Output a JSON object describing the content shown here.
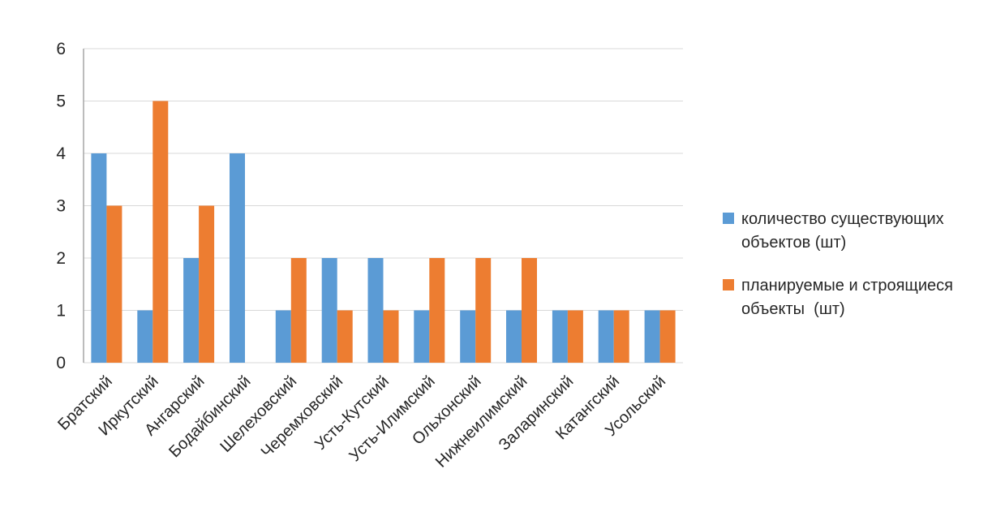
{
  "page": {
    "background_color": "#ffffff"
  },
  "colors": {
    "grid": "#d9d9d9",
    "axis_line": "#a6a6a6",
    "text": "#262626",
    "series_blue": "#5b9bd5",
    "series_orange": "#ed7d31"
  },
  "chart_data": {
    "type": "bar",
    "title": "",
    "xlabel": "",
    "ylabel": "",
    "categories": [
      "Братский",
      "Иркутский",
      "Ангарский",
      "Бодайбинский",
      "Шелеховский",
      "Черемховский",
      "Усть-Кутский",
      "Усть-Илимский",
      "Ольхонский",
      "Нижнеилимский",
      "Заларинский",
      "Катангский",
      "Усольский"
    ],
    "series": [
      {
        "name": "количество существующих объектов (шт)",
        "color": "#5b9bd5",
        "values": [
          4,
          1,
          2,
          4,
          1,
          2,
          2,
          1,
          1,
          1,
          1,
          1,
          1
        ]
      },
      {
        "name": "планируемые и строящиеся объекты  (шт)",
        "color": "#ed7d31",
        "values": [
          3,
          5,
          3,
          0,
          2,
          1,
          1,
          2,
          2,
          2,
          1,
          1,
          1
        ]
      }
    ],
    "ylim": [
      0,
      6
    ],
    "yticks": [
      0,
      1,
      2,
      3,
      4,
      5,
      6
    ],
    "grid": true,
    "legend_position": "right",
    "bar_orientation": "vertical",
    "category_label_rotation_deg": -45
  }
}
